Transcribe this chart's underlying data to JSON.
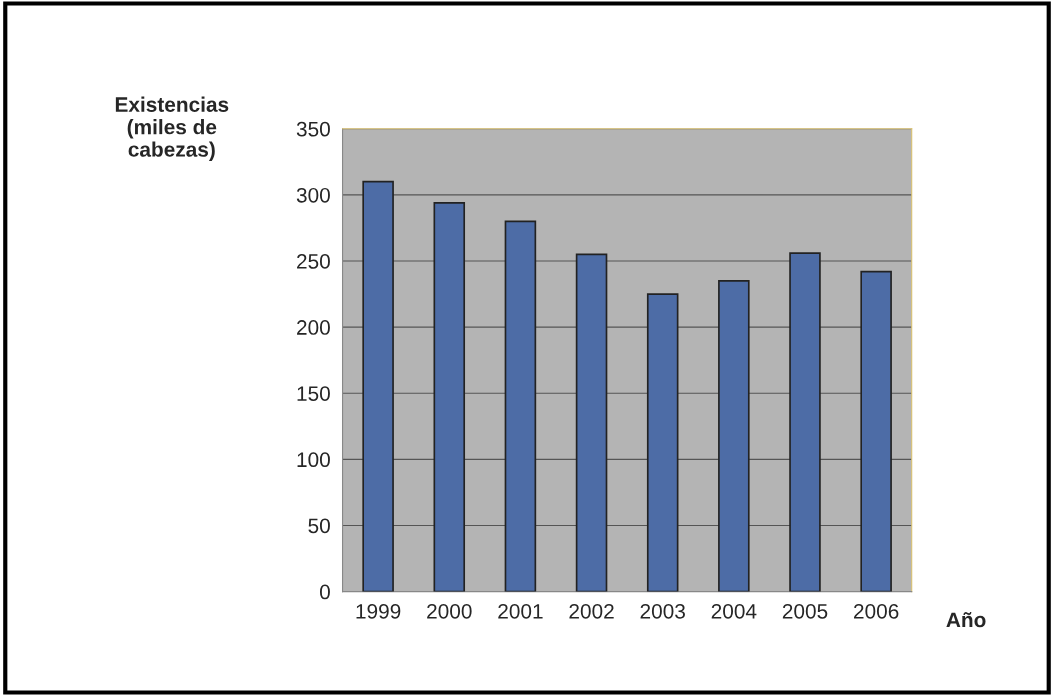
{
  "chart_data": {
    "type": "bar",
    "categories": [
      "1999",
      "2000",
      "2001",
      "2002",
      "2003",
      "2004",
      "2005",
      "2006"
    ],
    "values": [
      310,
      294,
      280,
      255,
      225,
      235,
      256,
      242
    ],
    "color": "#4d6ca6",
    "ylabel": "Existencias\n(miles de\ncabezas)",
    "xlabel": "Año",
    "ylim": [
      0,
      350
    ],
    "yticks": [
      0,
      50,
      100,
      150,
      200,
      250,
      300,
      350
    ],
    "grid": "y"
  }
}
